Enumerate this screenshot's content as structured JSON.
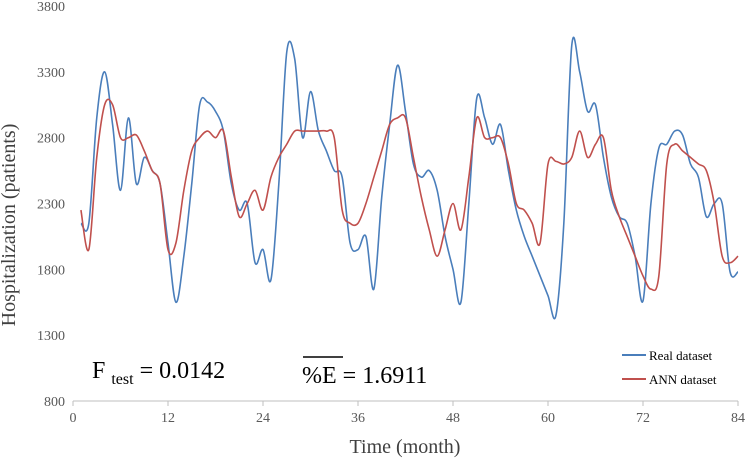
{
  "chart_data": {
    "type": "line",
    "title": "",
    "xlabel": "Time (month)",
    "ylabel": "Hospitalization (patients)",
    "xlim": [
      0,
      84
    ],
    "ylim": [
      800,
      3800
    ],
    "xticks": [
      0,
      12,
      24,
      36,
      48,
      60,
      72,
      84
    ],
    "yticks": [
      800,
      1300,
      1800,
      2300,
      2800,
      3300,
      3800
    ],
    "xtick_labels": [
      "0",
      "12",
      "24",
      "36",
      "48",
      "60",
      "72",
      "84"
    ],
    "ytick_labels": [
      "800",
      "1300",
      "1800",
      "2300",
      "2800",
      "3300",
      "3800"
    ],
    "grid": false,
    "legend_position": "bottom-right",
    "series": [
      {
        "name": "Real dataset",
        "color": "#4a7ebb",
        "x": [
          1,
          2,
          3,
          4,
          5,
          6,
          7,
          8,
          9,
          10,
          11,
          12,
          13,
          14,
          15,
          16,
          17,
          18,
          19,
          20,
          21,
          22,
          23,
          24,
          25,
          26,
          27,
          28,
          29,
          30,
          31,
          32,
          33,
          34,
          35,
          36,
          37,
          38,
          39,
          40,
          41,
          42,
          43,
          44,
          45,
          46,
          47,
          48,
          49,
          50,
          51,
          52,
          53,
          54,
          55,
          56,
          57,
          58,
          59,
          60,
          61,
          62,
          63,
          64,
          65,
          66,
          67,
          68,
          69,
          70,
          71,
          72,
          73,
          74,
          75,
          76,
          77,
          78,
          79,
          80,
          81,
          82,
          83,
          84
        ],
        "values": [
          2150,
          2150,
          2950,
          3300,
          2900,
          2400,
          2950,
          2450,
          2650,
          2550,
          2450,
          2000,
          1550,
          1900,
          2450,
          3050,
          3070,
          3000,
          2850,
          2450,
          2250,
          2300,
          1850,
          1950,
          1720,
          2450,
          3450,
          3400,
          2800,
          3150,
          2850,
          2700,
          2550,
          2500,
          2000,
          1950,
          2050,
          1650,
          2350,
          2900,
          3350,
          3000,
          2600,
          2500,
          2550,
          2400,
          2050,
          1800,
          1550,
          2300,
          3100,
          2950,
          2750,
          2900,
          2550,
          2250,
          2050,
          1900,
          1750,
          1600,
          1450,
          2150,
          3500,
          3300,
          3000,
          3050,
          2650,
          2350,
          2200,
          2150,
          1900,
          1560,
          2300,
          2720,
          2750,
          2850,
          2820,
          2600,
          2500,
          2200,
          2300,
          2300,
          1780,
          1780
        ]
      },
      {
        "name": "ANN dataset",
        "color": "#c0504d",
        "x": [
          1,
          2,
          3,
          4,
          5,
          6,
          7,
          8,
          9,
          10,
          11,
          12,
          13,
          14,
          15,
          16,
          17,
          18,
          19,
          20,
          21,
          22,
          23,
          24,
          25,
          26,
          27,
          28,
          29,
          30,
          31,
          32,
          33,
          34,
          35,
          36,
          37,
          38,
          39,
          40,
          41,
          42,
          43,
          44,
          45,
          46,
          47,
          48,
          49,
          50,
          51,
          52,
          53,
          54,
          55,
          56,
          57,
          58,
          59,
          60,
          61,
          62,
          63,
          64,
          65,
          66,
          67,
          68,
          69,
          70,
          71,
          72,
          73,
          74,
          75,
          76,
          77,
          78,
          79,
          80,
          81,
          82,
          83,
          84
        ],
        "values": [
          2250,
          1950,
          2650,
          3050,
          3050,
          2800,
          2800,
          2820,
          2700,
          2550,
          2450,
          1950,
          2000,
          2400,
          2700,
          2800,
          2850,
          2800,
          2850,
          2500,
          2200,
          2300,
          2400,
          2250,
          2500,
          2650,
          2750,
          2850,
          2850,
          2850,
          2850,
          2850,
          2800,
          2250,
          2150,
          2150,
          2300,
          2500,
          2700,
          2900,
          2950,
          2950,
          2650,
          2350,
          2100,
          1900,
          2100,
          2300,
          2100,
          2500,
          2950,
          2800,
          2800,
          2800,
          2600,
          2300,
          2250,
          2150,
          2000,
          2600,
          2620,
          2600,
          2650,
          2850,
          2650,
          2750,
          2800,
          2400,
          2200,
          2050,
          1900,
          1750,
          1650,
          1750,
          2600,
          2750,
          2700,
          2650,
          2600,
          2550,
          2300,
          1900,
          1850,
          1900
        ]
      }
    ],
    "annotations": [
      {
        "main": "F",
        "sub": "test",
        "rest": " =  0.0142"
      },
      {
        "overline": "%E",
        "rest": " = 1.6911"
      }
    ]
  }
}
